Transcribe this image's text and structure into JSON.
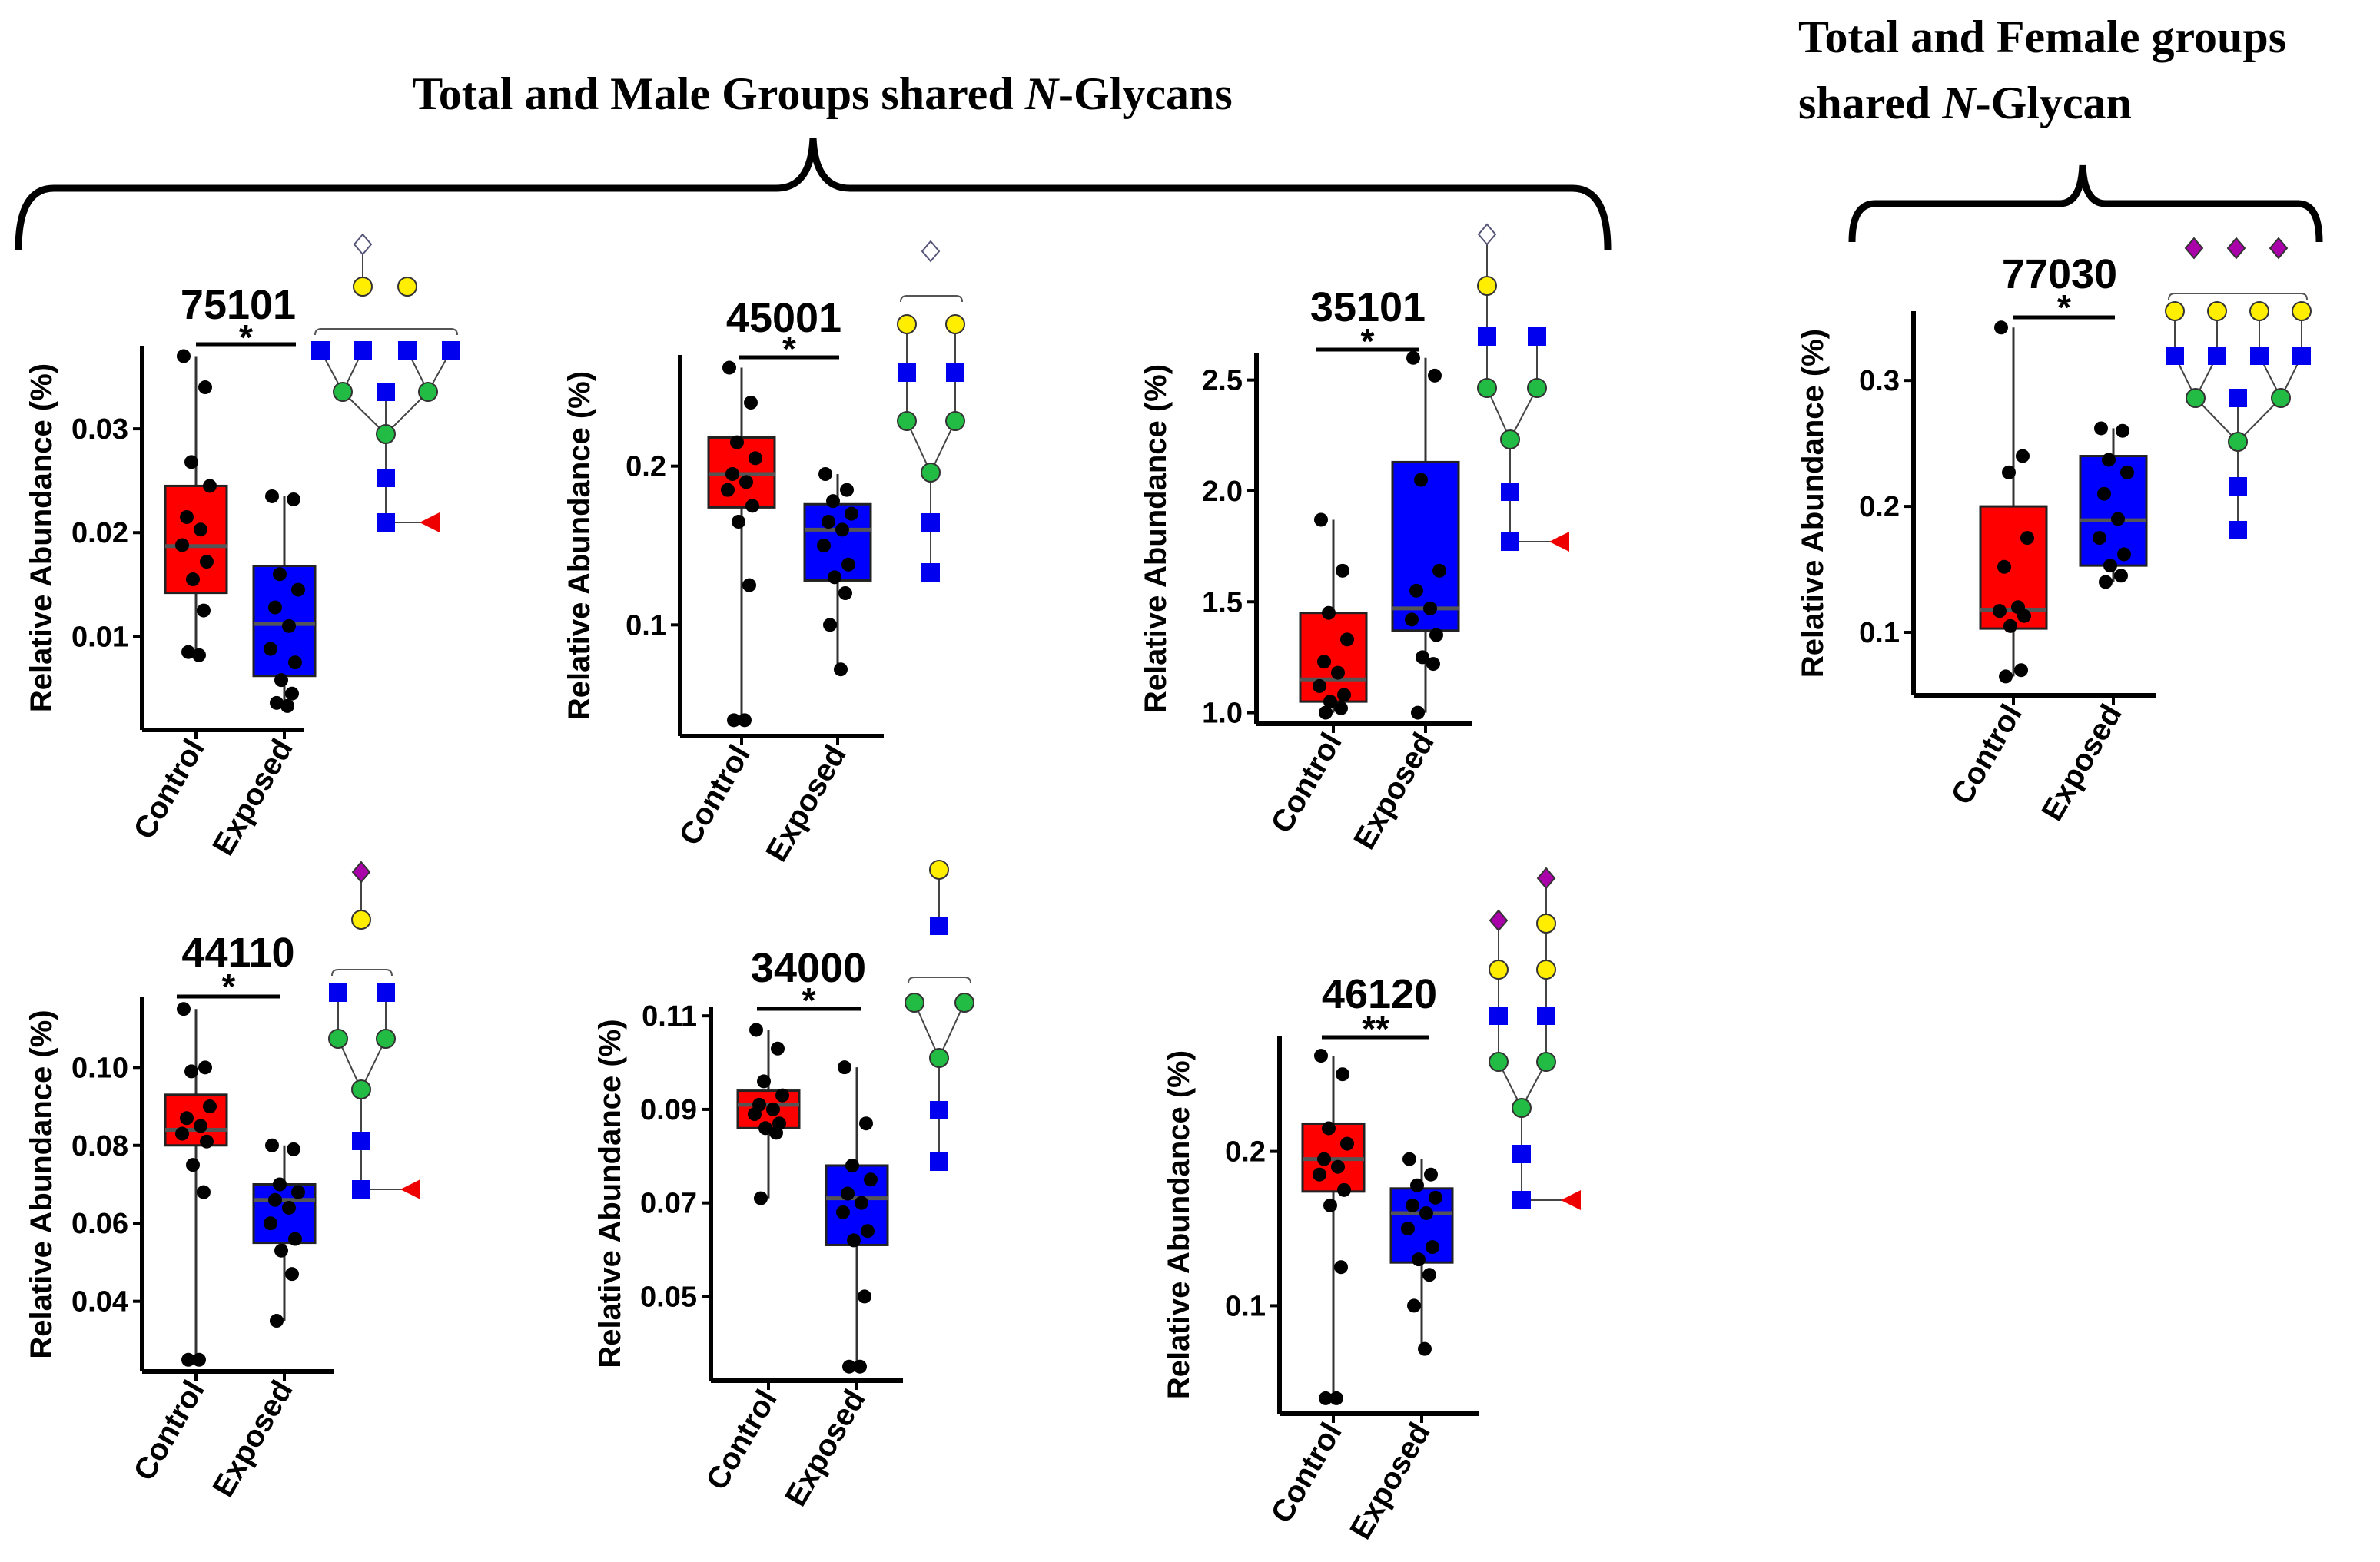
{
  "headers": {
    "male": {
      "prefix": "Total and Male Groups shared ",
      "italic": "N",
      "suffix": "-Glycans"
    },
    "female_line1": "Total and Female groups",
    "female_line2": {
      "prefix": "shared ",
      "italic": "N",
      "suffix": "-Glycan"
    }
  },
  "colors": {
    "control": "#ff0000",
    "exposed": "#0000ff",
    "median": "#555555",
    "point": "#000000"
  },
  "chart_data": [
    {
      "type": "boxplot",
      "id": "p75101",
      "title": "75101",
      "sig": "*",
      "ylabel": "Relative Abundance (%)",
      "categories": [
        "Control",
        "Exposed"
      ],
      "ylim": [
        0.001,
        0.038
      ],
      "yticks": [
        0.01,
        0.02,
        0.03
      ],
      "ytick_labels": [
        "0.01",
        "0.02",
        "0.03"
      ],
      "boxes": [
        {
          "q1": 0.0142,
          "median": 0.0187,
          "q3": 0.0245,
          "min": 0.008,
          "max": 0.037,
          "points": [
            0.037,
            0.034,
            0.0268,
            0.0245,
            0.0215,
            0.0203,
            0.0188,
            0.0172,
            0.0155,
            0.0125,
            0.0085,
            0.0082
          ]
        },
        {
          "q1": 0.0062,
          "median": 0.0112,
          "q3": 0.0168,
          "min": 0.0033,
          "max": 0.0235,
          "points": [
            0.0235,
            0.0232,
            0.016,
            0.0145,
            0.0128,
            0.011,
            0.0088,
            0.0075,
            0.0058,
            0.0045,
            0.0036,
            0.0033
          ]
        }
      ]
    },
    {
      "type": "boxplot",
      "id": "p45001",
      "title": "45001",
      "sig": "*",
      "ylabel": "Relative Abundance (%)",
      "categories": [
        "Control",
        "Exposed"
      ],
      "ylim": [
        0.03,
        0.27
      ],
      "yticks": [
        0.1,
        0.2
      ],
      "ytick_labels": [
        "0.1",
        "0.2"
      ],
      "boxes": [
        {
          "q1": 0.174,
          "median": 0.195,
          "q3": 0.218,
          "min": 0.04,
          "max": 0.262,
          "points": [
            0.262,
            0.24,
            0.215,
            0.205,
            0.195,
            0.19,
            0.185,
            0.175,
            0.165,
            0.125,
            0.04,
            0.04
          ]
        },
        {
          "q1": 0.128,
          "median": 0.16,
          "q3": 0.176,
          "min": 0.072,
          "max": 0.195,
          "points": [
            0.195,
            0.185,
            0.178,
            0.17,
            0.165,
            0.16,
            0.15,
            0.138,
            0.13,
            0.12,
            0.1,
            0.072
          ]
        }
      ]
    },
    {
      "type": "boxplot",
      "id": "p35101",
      "title": "35101",
      "sig": "*",
      "ylabel": "Relative Abundance (%)",
      "categories": [
        "Control",
        "Exposed"
      ],
      "ylim": [
        0.95,
        2.62
      ],
      "yticks": [
        1.0,
        1.5,
        2.0,
        2.5
      ],
      "ytick_labels": [
        "1.0",
        "1.5",
        "2.0",
        "2.5"
      ],
      "boxes": [
        {
          "q1": 1.05,
          "median": 1.15,
          "q3": 1.45,
          "min": 1.0,
          "max": 1.87,
          "points": [
            1.87,
            1.64,
            1.45,
            1.33,
            1.23,
            1.18,
            1.12,
            1.08,
            1.05,
            1.02,
            1.0
          ]
        },
        {
          "q1": 1.37,
          "median": 1.47,
          "q3": 2.13,
          "min": 1.0,
          "max": 2.6,
          "points": [
            2.6,
            2.52,
            2.05,
            1.64,
            1.55,
            1.47,
            1.42,
            1.35,
            1.25,
            1.22,
            1.0
          ]
        }
      ]
    },
    {
      "type": "boxplot",
      "id": "p77030",
      "title": "77030",
      "sig": "*",
      "ylabel": "Relative Abundance (%)",
      "categories": [
        "Control",
        "Exposed"
      ],
      "ylim": [
        0.05,
        0.355
      ],
      "yticks": [
        0.1,
        0.2,
        0.3
      ],
      "ytick_labels": [
        "0.1",
        "0.2",
        "0.3"
      ],
      "boxes": [
        {
          "q1": 0.103,
          "median": 0.118,
          "q3": 0.2,
          "min": 0.065,
          "max": 0.342,
          "points": [
            0.342,
            0.24,
            0.227,
            0.175,
            0.152,
            0.12,
            0.117,
            0.113,
            0.105,
            0.07,
            0.065
          ]
        },
        {
          "q1": 0.153,
          "median": 0.189,
          "q3": 0.24,
          "min": 0.14,
          "max": 0.262,
          "points": [
            0.262,
            0.26,
            0.237,
            0.227,
            0.21,
            0.19,
            0.175,
            0.162,
            0.153,
            0.145,
            0.14
          ]
        }
      ]
    },
    {
      "type": "boxplot",
      "id": "p44110",
      "title": "44110",
      "sig": "*",
      "ylabel": "Relative Abundance (%)",
      "categories": [
        "Control",
        "Exposed"
      ],
      "ylim": [
        0.022,
        0.118
      ],
      "yticks": [
        0.04,
        0.06,
        0.08,
        0.1
      ],
      "ytick_labels": [
        "0.04",
        "0.06",
        "0.08",
        "0.10"
      ],
      "boxes": [
        {
          "q1": 0.08,
          "median": 0.084,
          "q3": 0.093,
          "min": 0.025,
          "max": 0.115,
          "points": [
            0.115,
            0.1,
            0.099,
            0.09,
            0.087,
            0.085,
            0.083,
            0.081,
            0.075,
            0.068,
            0.025,
            0.025
          ]
        },
        {
          "q1": 0.055,
          "median": 0.066,
          "q3": 0.07,
          "min": 0.035,
          "max": 0.08,
          "points": [
            0.08,
            0.079,
            0.07,
            0.068,
            0.066,
            0.064,
            0.06,
            0.056,
            0.053,
            0.047,
            0.035
          ]
        }
      ]
    },
    {
      "type": "boxplot",
      "id": "p34000",
      "title": "34000",
      "sig": "*",
      "ylabel": "Relative Abundance (%)",
      "categories": [
        "Control",
        "Exposed"
      ],
      "ylim": [
        0.032,
        0.112
      ],
      "yticks": [
        0.05,
        0.07,
        0.09,
        0.11
      ],
      "ytick_labels": [
        "0.05",
        "0.07",
        "0.09",
        "0.11"
      ],
      "boxes": [
        {
          "q1": 0.086,
          "median": 0.091,
          "q3": 0.094,
          "min": 0.071,
          "max": 0.107,
          "points": [
            0.107,
            0.103,
            0.096,
            0.093,
            0.091,
            0.09,
            0.089,
            0.087,
            0.086,
            0.085,
            0.071
          ]
        },
        {
          "q1": 0.061,
          "median": 0.071,
          "q3": 0.078,
          "min": 0.035,
          "max": 0.099,
          "points": [
            0.099,
            0.087,
            0.078,
            0.075,
            0.072,
            0.07,
            0.068,
            0.064,
            0.062,
            0.05,
            0.035,
            0.035
          ]
        }
      ]
    },
    {
      "type": "boxplot",
      "id": "p46120",
      "title": "46120",
      "sig": "**",
      "ylabel": "Relative Abundance (%)",
      "categories": [
        "Control",
        "Exposed"
      ],
      "ylim": [
        0.03,
        0.275
      ],
      "yticks": [
        0.1,
        0.2
      ],
      "ytick_labels": [
        "0.1",
        "0.2"
      ],
      "boxes": [
        {
          "q1": 0.174,
          "median": 0.195,
          "q3": 0.218,
          "min": 0.04,
          "max": 0.262,
          "points": [
            0.262,
            0.25,
            0.215,
            0.205,
            0.195,
            0.19,
            0.185,
            0.175,
            0.165,
            0.125,
            0.04,
            0.04
          ]
        },
        {
          "q1": 0.128,
          "median": 0.16,
          "q3": 0.176,
          "min": 0.072,
          "max": 0.195,
          "points": [
            0.195,
            0.185,
            0.178,
            0.17,
            0.165,
            0.16,
            0.15,
            0.138,
            0.13,
            0.12,
            0.1,
            0.072
          ]
        }
      ]
    }
  ]
}
